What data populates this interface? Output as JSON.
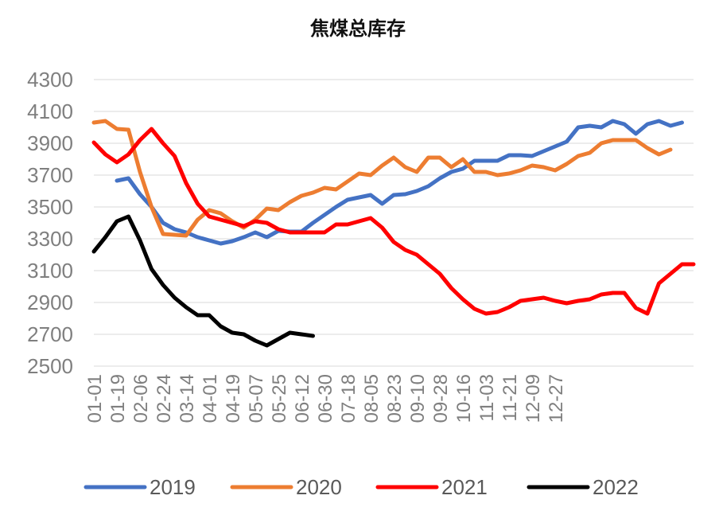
{
  "chart_data": {
    "type": "line",
    "title": "焦煤总库存",
    "xlabel": "",
    "ylabel": "",
    "ylim": [
      2500,
      4300
    ],
    "yticks": [
      2500,
      2700,
      2900,
      3100,
      3300,
      3500,
      3700,
      3900,
      4100,
      4300
    ],
    "grid": true,
    "legend_position": "bottom",
    "x_tick_labels": [
      "01-01",
      "01-19",
      "02-06",
      "02-24",
      "03-14",
      "04-01",
      "04-19",
      "05-07",
      "05-25",
      "06-12",
      "06-30",
      "07-18",
      "08-05",
      "08-23",
      "09-10",
      "09-28",
      "10-16",
      "11-03",
      "11-21",
      "12-09",
      "12-27"
    ],
    "x_tick_index": [
      0,
      2,
      4,
      6,
      8,
      10,
      12,
      14,
      16,
      18,
      20,
      22,
      24,
      26,
      28,
      30,
      32,
      34,
      36,
      38,
      40
    ],
    "series": [
      {
        "name": "2019",
        "color": "#4472c4",
        "start_index": 2,
        "values": [
          3665,
          3680,
          3580,
          3500,
          3400,
          3360,
          3340,
          3310,
          3290,
          3270,
          3285,
          3310,
          3340,
          3310,
          3350,
          3345,
          3345,
          3400,
          3450,
          3500,
          3545,
          3560,
          3575,
          3520,
          3575,
          3580,
          3600,
          3630,
          3680,
          3720,
          3740,
          3790,
          3790,
          3790,
          3825,
          3825,
          3820,
          3850,
          3880,
          3910,
          4000,
          4010,
          4000,
          4040,
          4020,
          3960,
          4020,
          4040,
          4010,
          4030
        ]
      },
      {
        "name": "2020",
        "color": "#ed7d31",
        "start_index": 0,
        "values": [
          4030,
          4040,
          3990,
          3985,
          3720,
          3500,
          3330,
          3325,
          3320,
          3420,
          3480,
          3460,
          3410,
          3370,
          3420,
          3490,
          3480,
          3530,
          3570,
          3590,
          3620,
          3610,
          3660,
          3710,
          3700,
          3760,
          3810,
          3750,
          3720,
          3810,
          3810,
          3750,
          3800,
          3720,
          3720,
          3700,
          3710,
          3730,
          3760,
          3750,
          3730,
          3770,
          3820,
          3840,
          3900,
          3920,
          3920,
          3920,
          3870,
          3830,
          3860
        ]
      },
      {
        "name": "2021",
        "color": "#ff0000",
        "start_index": 0,
        "values": [
          3905,
          3830,
          3780,
          3830,
          3920,
          3990,
          3900,
          3820,
          3650,
          3520,
          3440,
          3420,
          3400,
          3380,
          3410,
          3400,
          3360,
          3340,
          3340,
          3340,
          3340,
          3390,
          3390,
          3410,
          3430,
          3370,
          3280,
          3230,
          3200,
          3140,
          3080,
          2990,
          2920,
          2860,
          2830,
          2840,
          2870,
          2910,
          2920,
          2930,
          2910,
          2895,
          2910,
          2920,
          2950,
          2960,
          2960,
          2865,
          2830,
          3020,
          3080,
          3140,
          3140
        ]
      },
      {
        "name": "2022",
        "color": "#000000",
        "start_index": 0,
        "values": [
          3220,
          3310,
          3410,
          3440,
          3290,
          3110,
          3010,
          2930,
          2870,
          2820,
          2820,
          2750,
          2710,
          2700,
          2660,
          2630,
          2670,
          2710,
          2700,
          2690
        ]
      }
    ]
  }
}
